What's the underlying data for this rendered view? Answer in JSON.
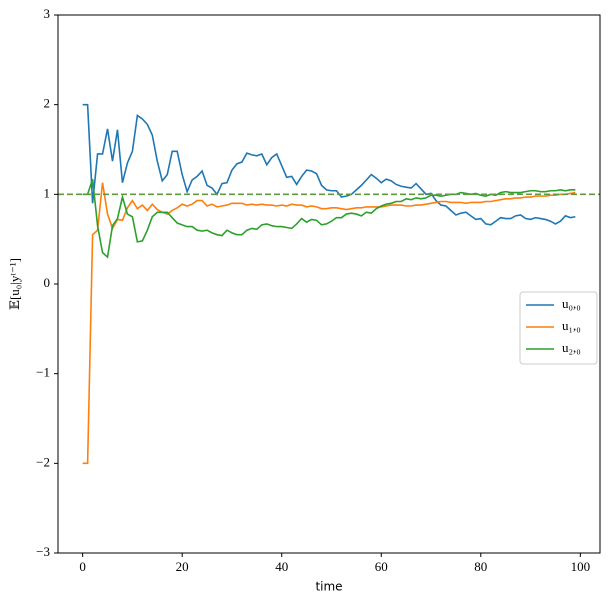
{
  "chart_data": {
    "type": "line",
    "x_label": "time",
    "y_label": "𝔼[u₀|yᵗ⁻¹]",
    "x": [
      0,
      1,
      2,
      3,
      4,
      5,
      6,
      7,
      8,
      9,
      10,
      11,
      12,
      13,
      14,
      15,
      16,
      17,
      18,
      19,
      20,
      21,
      22,
      23,
      24,
      25,
      26,
      27,
      28,
      29,
      30,
      31,
      32,
      33,
      34,
      35,
      36,
      37,
      38,
      39,
      40,
      41,
      42,
      43,
      44,
      45,
      46,
      47,
      48,
      49,
      50,
      51,
      52,
      53,
      54,
      55,
      56,
      57,
      58,
      59,
      60,
      61,
      62,
      63,
      64,
      65,
      66,
      67,
      68,
      69,
      70,
      71,
      72,
      73,
      74,
      75,
      76,
      77,
      78,
      79,
      80,
      81,
      82,
      83,
      84,
      85,
      86,
      87,
      88,
      89,
      90,
      91,
      92,
      93,
      94,
      95,
      96,
      97,
      98,
      99
    ],
    "series": [
      {
        "name": "u₀,₀",
        "color": "#1f77b4",
        "values": [
          2,
          2,
          0.9,
          1.45,
          1.45,
          1.73,
          1.37,
          1.72,
          1.13,
          1.35,
          1.48,
          1.88,
          1.84,
          1.78,
          1.66,
          1.37,
          1.15,
          1.22,
          1.48,
          1.48,
          1.22,
          1.03,
          1.16,
          1.2,
          1.26,
          1.1,
          1.07,
          1.0,
          1.12,
          1.13,
          1.27,
          1.34,
          1.36,
          1.46,
          1.44,
          1.43,
          1.45,
          1.33,
          1.41,
          1.45,
          1.32,
          1.19,
          1.2,
          1.11,
          1.2,
          1.27,
          1.26,
          1.23,
          1.1,
          1.05,
          1.04,
          1.04,
          0.97,
          0.98,
          1.0,
          1.05,
          1.1,
          1.16,
          1.22,
          1.18,
          1.13,
          1.17,
          1.15,
          1.11,
          1.09,
          1.08,
          1.07,
          1.12,
          1.06,
          1.0,
          1.01,
          0.93,
          0.88,
          0.87,
          0.82,
          0.77,
          0.79,
          0.8,
          0.76,
          0.72,
          0.73,
          0.67,
          0.66,
          0.7,
          0.74,
          0.73,
          0.73,
          0.76,
          0.77,
          0.73,
          0.72,
          0.74,
          0.73,
          0.72,
          0.7,
          0.67,
          0.7,
          0.76,
          0.74,
          0.75
        ]
      },
      {
        "name": "u₁,₀",
        "color": "#ff7f0e",
        "values": [
          -2,
          -2,
          0.55,
          0.6,
          1.13,
          0.78,
          0.62,
          0.72,
          0.71,
          0.85,
          0.93,
          0.84,
          0.88,
          0.82,
          0.89,
          0.83,
          0.8,
          0.78,
          0.82,
          0.85,
          0.89,
          0.87,
          0.89,
          0.93,
          0.93,
          0.87,
          0.89,
          0.86,
          0.87,
          0.88,
          0.9,
          0.9,
          0.9,
          0.88,
          0.89,
          0.88,
          0.89,
          0.88,
          0.88,
          0.87,
          0.88,
          0.87,
          0.89,
          0.88,
          0.88,
          0.86,
          0.87,
          0.86,
          0.84,
          0.84,
          0.85,
          0.85,
          0.84,
          0.83,
          0.84,
          0.85,
          0.85,
          0.86,
          0.86,
          0.86,
          0.86,
          0.87,
          0.88,
          0.88,
          0.88,
          0.87,
          0.87,
          0.88,
          0.88,
          0.89,
          0.9,
          0.91,
          0.92,
          0.92,
          0.91,
          0.91,
          0.91,
          0.9,
          0.91,
          0.91,
          0.91,
          0.92,
          0.92,
          0.93,
          0.94,
          0.95,
          0.95,
          0.96,
          0.96,
          0.97,
          0.97,
          0.98,
          0.98,
          0.98,
          0.99,
          0.99,
          1.0,
          1.0,
          1.01,
          1.02
        ]
      },
      {
        "name": "u₂,₀",
        "color": "#2ca02c",
        "values": [
          1.0,
          1.0,
          1.17,
          0.65,
          0.35,
          0.3,
          0.65,
          0.73,
          0.97,
          0.78,
          0.75,
          0.47,
          0.48,
          0.6,
          0.75,
          0.8,
          0.8,
          0.8,
          0.74,
          0.68,
          0.66,
          0.64,
          0.64,
          0.6,
          0.59,
          0.6,
          0.57,
          0.55,
          0.54,
          0.6,
          0.57,
          0.55,
          0.55,
          0.6,
          0.62,
          0.61,
          0.66,
          0.67,
          0.65,
          0.64,
          0.64,
          0.63,
          0.62,
          0.67,
          0.73,
          0.69,
          0.72,
          0.71,
          0.66,
          0.67,
          0.7,
          0.74,
          0.74,
          0.78,
          0.79,
          0.78,
          0.76,
          0.8,
          0.79,
          0.84,
          0.87,
          0.89,
          0.9,
          0.92,
          0.92,
          0.95,
          0.94,
          0.96,
          0.95,
          0.96,
          0.99,
          0.99,
          0.98,
          0.99,
          1.0,
          1.0,
          1.02,
          1.01,
          1.0,
          1.01,
          0.99,
          0.98,
          1.0,
          0.99,
          1.02,
          1.03,
          1.02,
          1.02,
          1.02,
          1.03,
          1.04,
          1.04,
          1.03,
          1.03,
          1.04,
          1.04,
          1.05,
          1.04,
          1.05,
          1.05
        ]
      }
    ],
    "reference_line": {
      "value": 1,
      "color": "#5f9b3e"
    },
    "xlim": [
      -4.95,
      103.95
    ],
    "ylim": [
      -3,
      3
    ],
    "xticks": [
      0,
      20,
      40,
      60,
      80,
      100
    ],
    "yticks": [
      {
        "value": -3,
        "label": "−3"
      },
      {
        "value": -2,
        "label": "−2"
      },
      {
        "value": -1,
        "label": "−1"
      },
      0,
      1,
      2,
      3
    ],
    "legend": "right"
  }
}
